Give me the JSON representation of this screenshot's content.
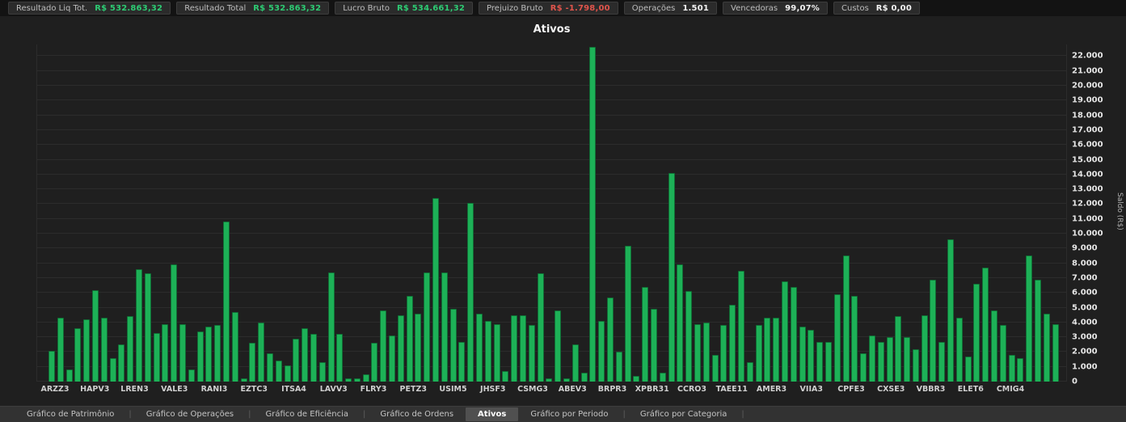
{
  "status_bar": {
    "items": [
      {
        "label": "Resultado Liq Tot.",
        "value": "R$ 532.863,32",
        "value_color": "#2dcb73"
      },
      {
        "label": "Resultado Total",
        "value": "R$ 532.863,32",
        "value_color": "#2dcb73"
      },
      {
        "label": "Lucro Bruto",
        "value": "R$ 534.661,32",
        "value_color": "#2dcb73"
      },
      {
        "label": "Prejuizo Bruto",
        "value": "R$ -1.798,00",
        "value_color": "#e0544b"
      },
      {
        "label": "Operações",
        "value": "1.501",
        "value_color": "#f2f2f2"
      },
      {
        "label": "Vencedoras",
        "value": "99,07%",
        "value_color": "#f2f2f2"
      },
      {
        "label": "Custos",
        "value": "R$ 0,00",
        "value_color": "#f2f2f2"
      }
    ]
  },
  "chart_data": {
    "type": "bar",
    "title": "Ativos",
    "ylabel": "Saldo (R$)",
    "ylim": [
      0,
      22800
    ],
    "ytick_step": 1000,
    "grid": true,
    "legend": "none",
    "bar_color": "#1db157",
    "ytick_labels": [
      "0",
      "1.000",
      "2.000",
      "3.000",
      "4.000",
      "5.000",
      "6.000",
      "7.000",
      "8.000",
      "9.000",
      "10.000",
      "11.000",
      "12.000",
      "13.000",
      "14.000",
      "15.000",
      "16.000",
      "17.000",
      "18.000",
      "19.000",
      "20.000",
      "21.000",
      "22.000"
    ],
    "x_axis_labels": [
      "ARZZ3",
      "HAPV3",
      "LREN3",
      "VALE3",
      "RANI3",
      "EZTC3",
      "ITSA4",
      "LAVV3",
      "FLRY3",
      "PETZ3",
      "USIM5",
      "JHSF3",
      "CSMG3",
      "ABEV3",
      "BRPR3",
      "XPBR31",
      "CCRO3",
      "TAEE11",
      "AMER3",
      "VIIA3",
      "CPFE3",
      "CXSE3",
      "VBBR3",
      "ELET6",
      "CMIG4"
    ],
    "values": [
      2100,
      4300,
      800,
      3600,
      4200,
      6200,
      4300,
      1600,
      2500,
      4400,
      7600,
      7300,
      3300,
      3900,
      7900,
      3900,
      800,
      3400,
      3700,
      3800,
      10800,
      4700,
      200,
      2600,
      4000,
      1900,
      1400,
      1100,
      2900,
      3600,
      3200,
      1300,
      7400,
      3200,
      200,
      200,
      500,
      2600,
      4800,
      3100,
      4500,
      5800,
      4600,
      7400,
      12400,
      7400,
      4900,
      2700,
      12100,
      4600,
      4100,
      3900,
      700,
      4500,
      4500,
      3800,
      7300,
      200,
      4800,
      200,
      2500,
      600,
      22600,
      4100,
      5700,
      2000,
      9200,
      400,
      6400,
      4900,
      600,
      14100,
      7900,
      6100,
      3900,
      4000,
      1800,
      3800,
      5200,
      7500,
      1300,
      3800,
      4300,
      4300,
      6800,
      6400,
      3700,
      3500,
      2700,
      2700,
      5900,
      8500,
      5800,
      1900,
      3100,
      2700,
      3000,
      4400,
      3000,
      2200,
      4500,
      6900,
      2700,
      9600,
      4300,
      1700,
      6600,
      7700,
      4800,
      3800,
      1800,
      1600,
      8500,
      6900,
      4600,
      3900
    ]
  },
  "tab_bar": {
    "tabs": [
      {
        "label": "Gráfico de Patrimônio",
        "active": false
      },
      {
        "label": "Gráfico de Operações",
        "active": false
      },
      {
        "label": "Gráfico de Eficiência",
        "active": false
      },
      {
        "label": "Gráfico de Ordens",
        "active": false
      },
      {
        "label": "Ativos",
        "active": true
      },
      {
        "label": "Gráfico por Periodo",
        "active": false
      },
      {
        "label": "Gráfico por Categoria",
        "active": false
      }
    ]
  }
}
